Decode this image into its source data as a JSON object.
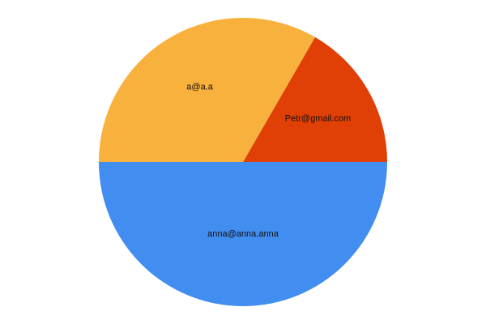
{
  "chart_data": {
    "type": "pie",
    "title": "",
    "slices": [
      {
        "label": "Petr@gmail.com",
        "value": 1,
        "color": "#E04006"
      },
      {
        "label": "a@a.a",
        "value": 2,
        "color": "#F9B13D"
      },
      {
        "label": "anna@anna.anna",
        "value": 3,
        "color": "#428DF0"
      }
    ],
    "legend": "none",
    "start_angle_deg": 0,
    "direction": "counterclockwise"
  }
}
